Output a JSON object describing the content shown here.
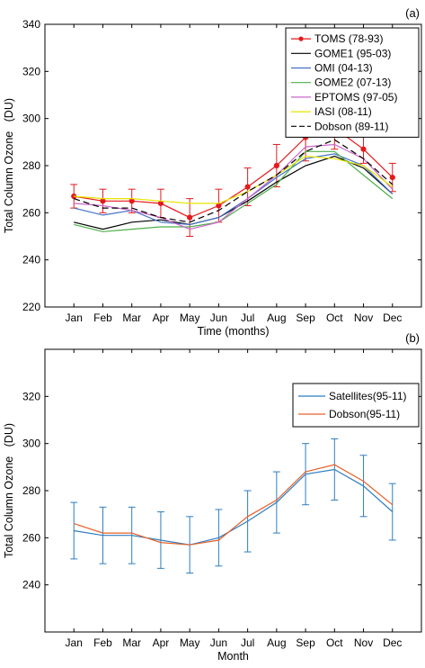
{
  "chart_data": [
    {
      "panel_label": "(a)",
      "type": "line",
      "xlabel": "Time (months)",
      "ylabel": "Total Column Ozone   (DU)",
      "ylim": [
        220,
        340
      ],
      "yticks": [
        220,
        240,
        260,
        280,
        300,
        320,
        340
      ],
      "categories": [
        "Jan",
        "Feb",
        "Mar",
        "Apr",
        "May",
        "Jun",
        "Jul",
        "Aug",
        "Sep",
        "Oct",
        "Nov",
        "Dec"
      ],
      "grid": false,
      "legend_position": "top-right",
      "series": [
        {
          "name": "TOMS (78-93)",
          "color": "#e41a1c",
          "dash": "solid",
          "marker": "circle",
          "values": [
            267,
            265,
            265,
            264,
            258,
            263,
            271,
            280,
            292,
            296,
            287,
            275
          ],
          "error": [
            5,
            5,
            5,
            6,
            8,
            7,
            8,
            9,
            10,
            9,
            6,
            6
          ]
        },
        {
          "name": "GOME1 (95-03)",
          "color": "#000000",
          "dash": "solid",
          "values": [
            256,
            253,
            256,
            257,
            255,
            258,
            265,
            273,
            280,
            284,
            279,
            268
          ]
        },
        {
          "name": "OMI (04-13)",
          "color": "#4472c4",
          "dash": "solid",
          "values": [
            262,
            259,
            261,
            256,
            255,
            258,
            266,
            275,
            283,
            285,
            280,
            268
          ]
        },
        {
          "name": "GOME2 (07-13)",
          "color": "#4daf4a",
          "dash": "solid",
          "values": [
            255,
            252,
            253,
            254,
            254,
            256,
            264,
            272,
            286,
            286,
            276,
            266
          ]
        },
        {
          "name": "EPTOMS (97-05)",
          "color": "#cc66cc",
          "dash": "solid",
          "values": [
            264,
            263,
            261,
            258,
            253,
            256,
            266,
            276,
            288,
            289,
            283,
            270
          ]
        },
        {
          "name": "IASI (08-11)",
          "color": "#e6e600",
          "dash": "solid",
          "values": [
            267,
            266,
            266,
            265,
            264,
            264,
            269,
            276,
            284,
            283,
            280,
            271
          ]
        },
        {
          "name": "Dobson (89-11)",
          "color": "#000000",
          "dash": "dashed",
          "values": [
            266,
            262,
            262,
            258,
            256,
            261,
            269,
            276,
            286,
            291,
            283,
            272
          ]
        }
      ]
    },
    {
      "panel_label": "(b)",
      "type": "line",
      "xlabel": "Month",
      "ylabel": "Total Column Ozone   (DU)",
      "ylim": [
        220,
        340
      ],
      "yticks": [
        240,
        260,
        280,
        300,
        320
      ],
      "categories": [
        "Jan",
        "Feb",
        "Mar",
        "Apr",
        "May",
        "Jun",
        "Jul",
        "Aug",
        "Sep",
        "Oct",
        "Nov",
        "Dec"
      ],
      "grid": false,
      "legend_position": "top-right",
      "series": [
        {
          "name": "Satellites(95-11)",
          "color": "#2e7ebf",
          "dash": "solid",
          "values": [
            263,
            261,
            261,
            259,
            257,
            260,
            267,
            275,
            287,
            289,
            282,
            271
          ],
          "error": [
            12,
            12,
            12,
            12,
            12,
            12,
            13,
            13,
            13,
            13,
            13,
            12
          ]
        },
        {
          "name": "Dobson(95-11)",
          "color": "#e5602a",
          "dash": "solid",
          "values": [
            266,
            262,
            262,
            258,
            257,
            259,
            269,
            276,
            288,
            291,
            284,
            274
          ]
        }
      ]
    }
  ]
}
